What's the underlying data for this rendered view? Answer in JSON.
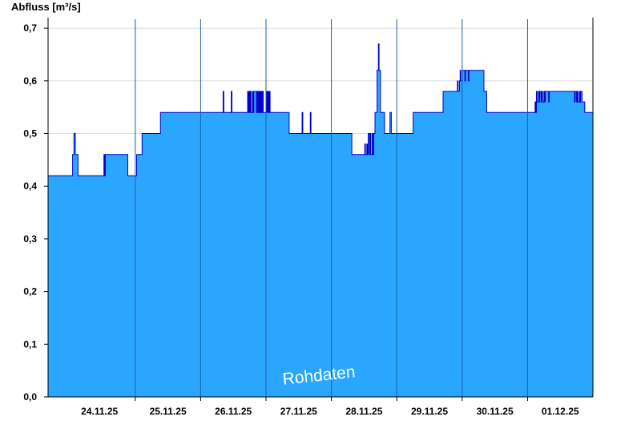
{
  "chart_data": {
    "type": "area",
    "ylabel": "Abfluss [m³/s]",
    "watermark": "Rohdaten",
    "ylim": [
      0,
      0.72
    ],
    "yticks": [
      "0,0",
      "0,1",
      "0,2",
      "0,3",
      "0,4",
      "0,5",
      "0,6",
      "0,7"
    ],
    "ytick_values": [
      0.0,
      0.1,
      0.2,
      0.3,
      0.4,
      0.5,
      0.6,
      0.7
    ],
    "xlim": [
      "2025-11-23T16:00",
      "2025-12-01T24:00"
    ],
    "xticks": [
      "24.11.25",
      "25.11.25",
      "26.11.25",
      "27.11.25",
      "28.11.25",
      "29.11.25",
      "30.11.25",
      "01.12.25"
    ],
    "day_boundaries": [
      "2025-11-24T24:00",
      "2025-11-25T24:00",
      "2025-11-26T24:00",
      "2025-11-27T24:00",
      "2025-11-28T24:00",
      "2025-11-29T24:00",
      "2025-11-30T24:00"
    ],
    "grid": "horizontal",
    "colors": {
      "fill": "#2aa6ff",
      "line": "#0000cc",
      "day_line": "#1a5fa8",
      "grid": "#dddddd"
    },
    "series": [
      {
        "x": [
          "2025-11-23T16:00",
          "2025-11-24T00:00",
          "2025-11-24T01:00",
          "2025-11-24T01:30",
          "2025-11-24T02:00",
          "2025-11-24T03:00",
          "2025-11-24T12:00",
          "2025-11-24T12:30",
          "2025-11-24T12:45",
          "2025-11-24T13:00",
          "2025-11-24T13:15",
          "2025-11-24T20:30",
          "2025-11-24T21:15",
          "2025-11-25T00:00",
          "2025-11-25T00:30",
          "2025-11-25T00:45",
          "2025-11-25T02:30",
          "2025-11-25T08:30",
          "2025-11-25T09:15",
          "2025-11-25T11:30",
          "2025-11-25T12:30",
          "2025-11-25T17:00",
          "2025-11-25T19:00",
          "2025-11-25T21:00",
          "2025-11-25T21:45",
          "2025-11-26T00:00",
          "2025-11-26T08:00",
          "2025-11-26T08:15",
          "2025-11-26T08:30",
          "2025-11-26T11:00",
          "2025-11-26T11:15",
          "2025-11-26T11:30",
          "2025-11-26T17:00",
          "2025-11-26T17:15",
          "2025-11-26T17:30",
          "2025-11-26T17:45",
          "2025-11-26T18:00",
          "2025-11-26T18:15",
          "2025-11-26T18:30",
          "2025-11-26T19:00",
          "2025-11-26T19:15",
          "2025-11-26T19:30",
          "2025-11-26T20:30",
          "2025-11-26T20:45",
          "2025-11-26T21:00",
          "2025-11-26T21:15",
          "2025-11-26T21:30",
          "2025-11-26T21:45",
          "2025-11-26T22:00",
          "2025-11-26T22:15",
          "2025-11-26T22:30",
          "2025-11-26T22:45",
          "2025-11-26T23:00",
          "2025-11-26T23:15",
          "2025-11-27T00:00",
          "2025-11-27T00:15",
          "2025-11-27T00:30",
          "2025-11-27T00:45",
          "2025-11-27T01:00",
          "2025-11-27T01:15",
          "2025-11-27T01:30",
          "2025-11-27T02:00",
          "2025-11-27T08:00",
          "2025-11-27T08:30",
          "2025-11-27T11:00",
          "2025-11-27T13:00",
          "2025-11-27T13:15",
          "2025-11-27T13:30",
          "2025-11-27T16:00",
          "2025-11-27T16:15",
          "2025-11-27T16:30",
          "2025-11-28T06:00",
          "2025-11-28T07:30",
          "2025-11-28T12:00",
          "2025-11-28T12:15",
          "2025-11-28T12:30",
          "2025-11-28T13:00",
          "2025-11-28T13:15",
          "2025-11-28T13:30",
          "2025-11-28T14:00",
          "2025-11-28T14:15",
          "2025-11-28T14:30",
          "2025-11-28T15:00",
          "2025-11-28T15:15",
          "2025-11-28T15:30",
          "2025-11-28T16:00",
          "2025-11-28T16:45",
          "2025-11-28T17:15",
          "2025-11-28T17:30",
          "2025-11-28T18:00",
          "2025-11-28T18:30",
          "2025-11-28T19:30",
          "2025-11-28T21:00",
          "2025-11-28T21:30",
          "2025-11-28T22:00",
          "2025-11-28T22:15",
          "2025-11-28T22:30",
          "2025-11-29T00:00",
          "2025-11-29T06:00",
          "2025-11-29T08:00",
          "2025-11-29T15:00",
          "2025-11-29T17:00",
          "2025-11-29T22:00",
          "2025-11-29T22:15",
          "2025-11-29T22:30",
          "2025-11-29T23:00",
          "2025-11-29T23:15",
          "2025-11-29T23:30",
          "2025-11-30T00:00",
          "2025-11-30T01:00",
          "2025-11-30T01:15",
          "2025-11-30T01:30",
          "2025-11-30T02:00",
          "2025-11-30T02:15",
          "2025-11-30T02:30",
          "2025-11-30T08:00",
          "2025-11-30T09:00",
          "2025-12-01T00:00",
          "2025-12-01T02:30",
          "2025-12-01T02:45",
          "2025-12-01T03:00",
          "2025-12-01T03:15",
          "2025-12-01T03:30",
          "2025-12-01T04:00",
          "2025-12-01T04:15",
          "2025-12-01T04:30",
          "2025-12-01T05:00",
          "2025-12-01T05:15",
          "2025-12-01T05:30",
          "2025-12-01T06:00",
          "2025-12-01T06:15",
          "2025-12-01T06:30",
          "2025-12-01T07:30",
          "2025-12-01T07:45",
          "2025-12-01T08:00",
          "2025-12-01T17:00",
          "2025-12-01T17:15",
          "2025-12-01T17:30",
          "2025-12-01T18:00",
          "2025-12-01T18:15",
          "2025-12-01T18:30",
          "2025-12-01T19:00",
          "2025-12-01T19:15",
          "2025-12-01T19:30",
          "2025-12-01T20:00",
          "2025-12-01T21:00",
          "2025-12-01T24:00"
        ],
        "y": [
          0.42,
          0.42,
          0.46,
          0.5,
          0.46,
          0.42,
          0.42,
          0.46,
          0.42,
          0.46,
          0.46,
          0.46,
          0.42,
          0.42,
          0.46,
          0.46,
          0.5,
          0.5,
          0.54,
          0.54,
          0.54,
          0.54,
          0.54,
          0.54,
          0.54,
          0.54,
          0.54,
          0.58,
          0.54,
          0.54,
          0.58,
          0.54,
          0.54,
          0.58,
          0.54,
          0.58,
          0.54,
          0.58,
          0.54,
          0.58,
          0.54,
          0.58,
          0.54,
          0.58,
          0.54,
          0.58,
          0.54,
          0.58,
          0.54,
          0.58,
          0.54,
          0.58,
          0.54,
          0.54,
          0.54,
          0.58,
          0.54,
          0.58,
          0.54,
          0.58,
          0.54,
          0.54,
          0.54,
          0.5,
          0.5,
          0.5,
          0.54,
          0.5,
          0.5,
          0.54,
          0.5,
          0.5,
          0.46,
          0.46,
          0.48,
          0.46,
          0.48,
          0.46,
          0.5,
          0.46,
          0.5,
          0.46,
          0.5,
          0.46,
          0.5,
          0.54,
          0.62,
          0.67,
          0.62,
          0.54,
          0.54,
          0.5,
          0.5,
          0.54,
          0.5,
          0.5,
          0.5,
          0.5,
          0.54,
          0.54,
          0.54,
          0.58,
          0.58,
          0.6,
          0.58,
          0.6,
          0.62,
          0.6,
          0.62,
          0.6,
          0.62,
          0.62,
          0.62,
          0.6,
          0.62,
          0.58,
          0.54,
          0.54,
          0.54,
          0.56,
          0.54,
          0.58,
          0.56,
          0.58,
          0.56,
          0.58,
          0.56,
          0.58,
          0.56,
          0.58,
          0.56,
          0.58,
          0.58,
          0.56,
          0.58,
          0.58,
          0.56,
          0.58,
          0.56,
          0.58,
          0.56,
          0.58,
          0.56,
          0.58,
          0.56,
          0.54,
          0.54
        ]
      }
    ]
  }
}
